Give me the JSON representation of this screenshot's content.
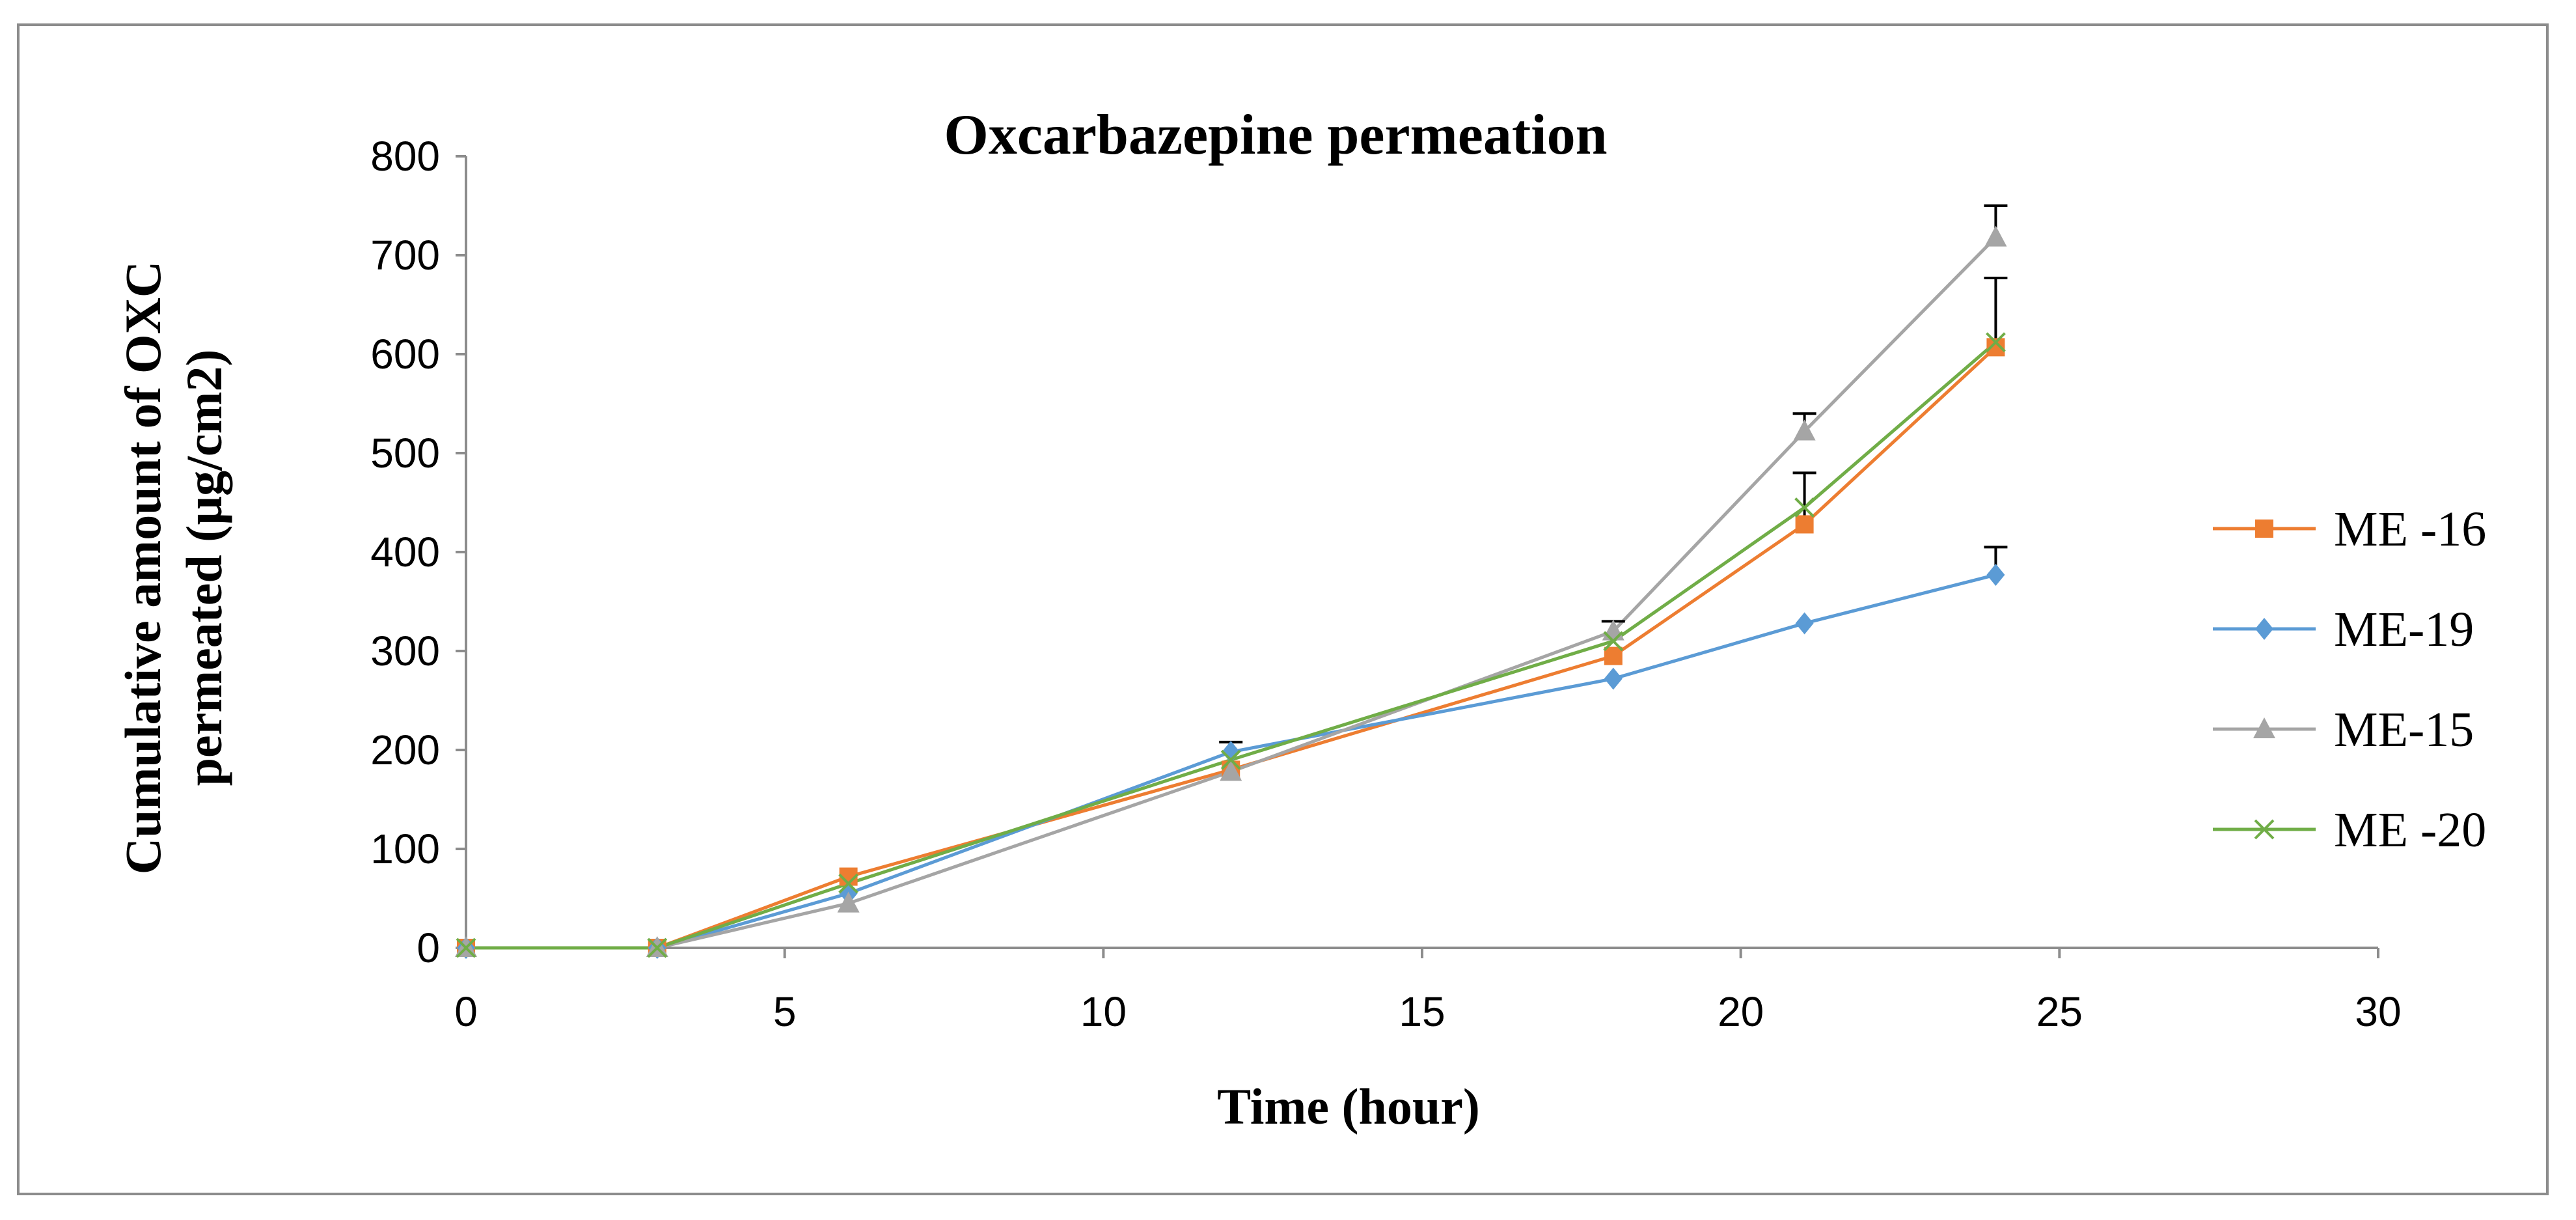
{
  "chart_data": {
    "type": "line",
    "title": "Oxcarbazepine  permeation",
    "xlabel": "Time  (hour)",
    "ylabel_line1": "Cumulative amount of  OXC",
    "ylabel_line2": "permeated (µg/cm2)",
    "xlim": [
      0,
      30
    ],
    "ylim": [
      0,
      800
    ],
    "xticks": [
      0,
      5,
      10,
      15,
      20,
      25,
      30
    ],
    "yticks": [
      0,
      100,
      200,
      300,
      400,
      500,
      600,
      700,
      800
    ],
    "x": [
      0,
      3,
      6,
      12,
      18,
      21,
      24
    ],
    "grid": false,
    "legend_position": "right",
    "series": [
      {
        "name": "ME -16",
        "color": "#ED7D31",
        "marker": "square",
        "values": [
          0,
          0,
          72,
          180,
          295,
          428,
          607
        ],
        "errors": [
          0,
          0,
          0,
          0,
          0,
          52,
          70
        ]
      },
      {
        "name": "ME-19",
        "color": "#5B9BD5",
        "marker": "diamond",
        "values": [
          0,
          0,
          55,
          198,
          272,
          328,
          377
        ],
        "errors": [
          0,
          0,
          0,
          10,
          0,
          0,
          28
        ]
      },
      {
        "name": "ME-15",
        "color": "#A5A5A5",
        "marker": "triangle",
        "values": [
          0,
          0,
          45,
          178,
          320,
          522,
          718
        ],
        "errors": [
          0,
          0,
          0,
          0,
          10,
          18,
          32
        ]
      },
      {
        "name": "ME -20",
        "color": "#70AD47",
        "marker": "x",
        "values": [
          0,
          0,
          65,
          190,
          310,
          445,
          612
        ],
        "errors": [
          0,
          0,
          0,
          0,
          0,
          0,
          0
        ]
      }
    ]
  }
}
